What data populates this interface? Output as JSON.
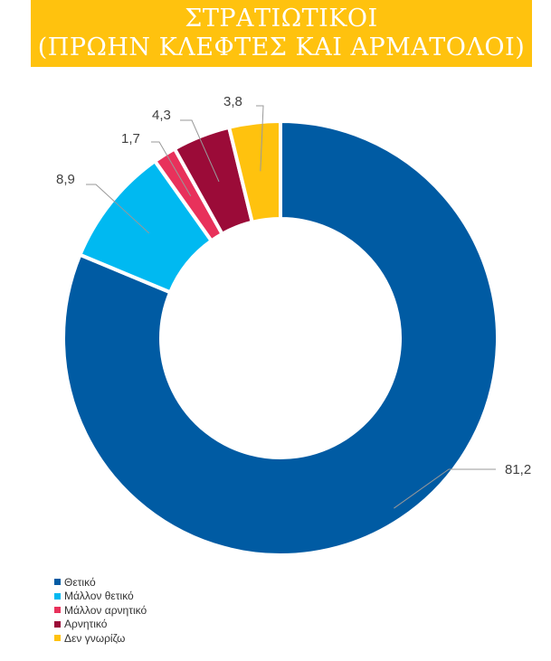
{
  "title": {
    "line1": "ΣΤΡΑΤΙΩΤΙΚΟΙ",
    "line2": "(ΠΡΩΗΝ ΚΛΕΦΤΕΣ ΚΑΙ ΑΡΜΑΤΟΛΟΙ)"
  },
  "chart_data": {
    "type": "pie",
    "donut": true,
    "title": "ΣΤΡΑΤΙΩΤΙΚΟΙ (ΠΡΩΗΝ ΚΛΕΦΤΕΣ ΚΑΙ ΑΡΜΑΤΟΛΟΙ)",
    "legend_position": "bottom-left",
    "slices": [
      {
        "label": "Θετικό",
        "value": 81.2,
        "display": "81,2",
        "color": "#005BA3"
      },
      {
        "label": "Μάλλον θετικό",
        "value": 8.9,
        "display": "8,9",
        "color": "#00B9F1"
      },
      {
        "label": "Μάλλον αρνητικό",
        "value": 1.7,
        "display": "1,7",
        "color": "#E8315B"
      },
      {
        "label": "Αρνητικό",
        "value": 4.3,
        "display": "4,3",
        "color": "#9B0B38"
      },
      {
        "label": "Δεν γνωρίζω",
        "value": 3.8,
        "display": "3,8",
        "color": "#FFC20E"
      }
    ]
  }
}
